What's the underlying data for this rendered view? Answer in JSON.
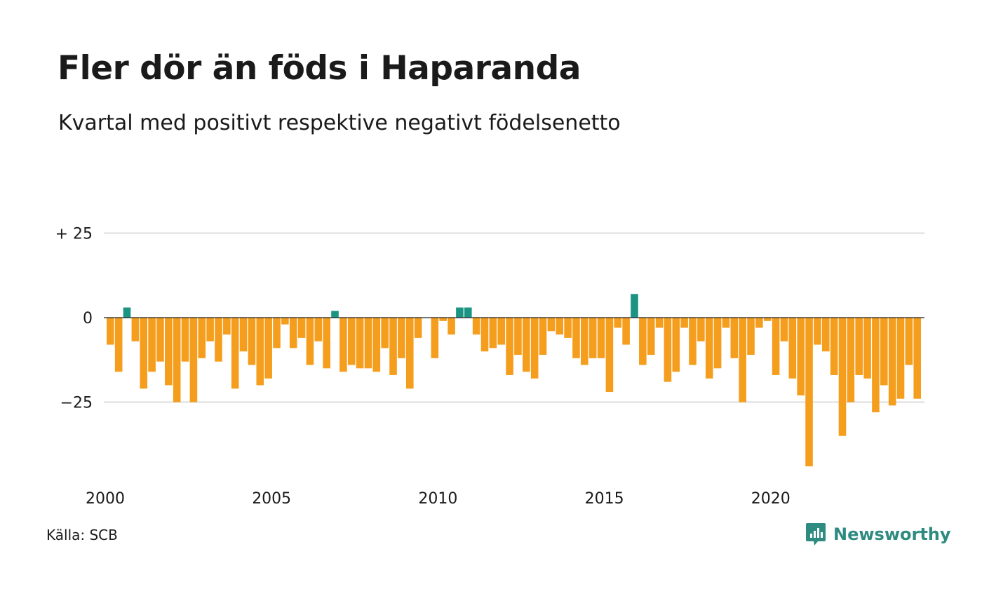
{
  "title": "Fler dör än föds i Haparanda",
  "subtitle": "Kvartal med positivt respektive negativt födelsenetto",
  "source": "Källa: SCB",
  "brand": {
    "name": "Newsworthy",
    "icon": "newsworthy-logo-icon",
    "color": "#2e8b80"
  },
  "chart_data": {
    "type": "bar",
    "title": "Fler dör än föds i Haparanda",
    "subtitle": "Kvartal med positivt respektive negativt födelsenetto",
    "xlabel": "",
    "ylabel": "",
    "x_start": 2000,
    "periods_per_year": 4,
    "x_ticks": [
      "2000",
      "2005",
      "2010",
      "2015",
      "2020"
    ],
    "y_ticks": [
      {
        "value": 25,
        "label": "+ 25"
      },
      {
        "value": 0,
        "label": "0"
      },
      {
        "value": -25,
        "label": "−25"
      }
    ],
    "ylim": [
      -45,
      25
    ],
    "grid": true,
    "colors": {
      "positive": "#1b9483",
      "negative": "#f59e1e"
    },
    "values": [
      -8,
      -16,
      3,
      -7,
      -21,
      -16,
      -13,
      -20,
      -25,
      -13,
      -25,
      -12,
      -7,
      -13,
      -5,
      -21,
      -10,
      -14,
      -20,
      -18,
      -9,
      -2,
      -9,
      -6,
      -14,
      -7,
      -15,
      2,
      -16,
      -14,
      -15,
      -15,
      -16,
      -9,
      -17,
      -12,
      -21,
      -6,
      0,
      -12,
      -1,
      -5,
      3,
      3,
      -5,
      -10,
      -9,
      -8,
      -17,
      -11,
      -16,
      -18,
      -11,
      -4,
      -5,
      -6,
      -12,
      -14,
      -12,
      -12,
      -22,
      -3,
      -8,
      7,
      -14,
      -11,
      -3,
      -19,
      -16,
      -3,
      -14,
      -7,
      -18,
      -15,
      -3,
      -12,
      -25,
      -11,
      -3,
      -1,
      -17,
      -7,
      -18,
      -23,
      -44,
      -8,
      -10,
      -17,
      -35,
      -25,
      -17,
      -18,
      -28,
      -20,
      -26,
      -24,
      -14,
      -24
    ]
  }
}
